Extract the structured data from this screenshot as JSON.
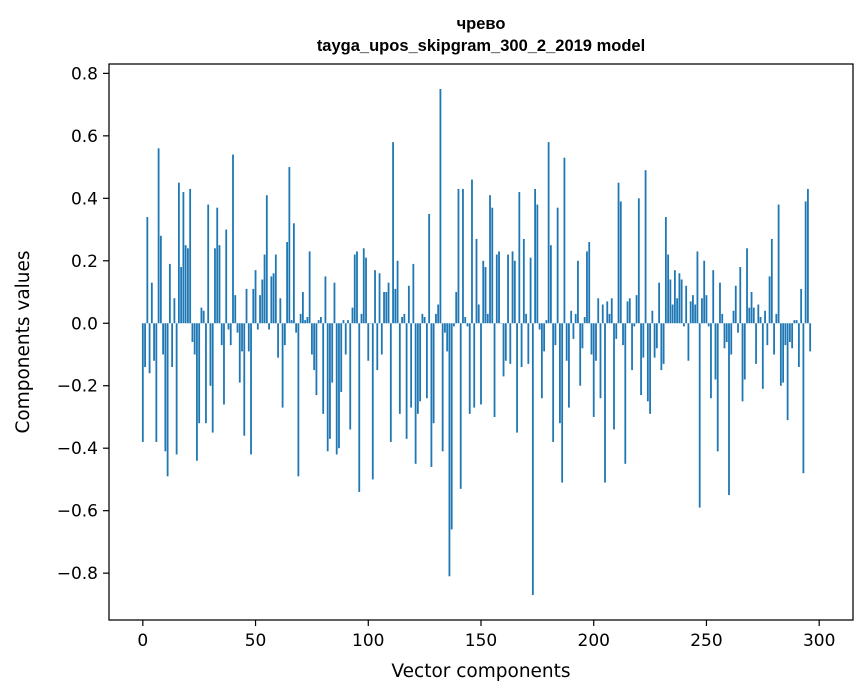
{
  "chart_data": {
    "type": "bar",
    "title": "чрево",
    "subtitle": "tayga_upos_skipgram_300_2_2019 model",
    "xlabel": "Vector components",
    "ylabel": "Components values",
    "xlim": [
      -15,
      315
    ],
    "ylim": [
      -0.95,
      0.83
    ],
    "xticks": [
      0,
      50,
      100,
      150,
      200,
      250,
      300
    ],
    "xtick_labels": [
      "0",
      "50",
      "100",
      "150",
      "200",
      "250",
      "300"
    ],
    "yticks": [
      0.8,
      0.6,
      0.4,
      0.2,
      0.0,
      -0.2,
      -0.4,
      -0.6,
      -0.8
    ],
    "ytick_labels": [
      "0.8",
      "0.6",
      "0.4",
      "0.2",
      "0.0",
      "−0.2",
      "−0.4",
      "−0.6",
      "−0.8"
    ],
    "bar_color": "#1f77b4",
    "grid": false,
    "series": [
      {
        "name": "чрево",
        "x_start": 0,
        "values": [
          -0.38,
          -0.14,
          0.34,
          -0.16,
          0.13,
          -0.12,
          -0.38,
          0.56,
          0.28,
          -0.1,
          -0.41,
          -0.49,
          0.19,
          -0.14,
          0.08,
          -0.42,
          0.45,
          0.18,
          0.42,
          0.25,
          0.24,
          0.43,
          -0.06,
          -0.1,
          -0.44,
          -0.32,
          0.05,
          0.04,
          -0.32,
          0.38,
          -0.2,
          -0.35,
          0.24,
          0.37,
          0.25,
          -0.07,
          -0.26,
          0.3,
          -0.02,
          -0.07,
          0.54,
          0.09,
          -0.03,
          -0.19,
          -0.09,
          -0.36,
          0.11,
          -0.09,
          -0.42,
          0.11,
          0.17,
          -0.02,
          0.09,
          0.14,
          0.22,
          0.41,
          -0.02,
          0.15,
          0.16,
          0.22,
          -0.11,
          0.08,
          -0.27,
          -0.07,
          0.26,
          0.5,
          0.01,
          0.32,
          -0.03,
          -0.49,
          0.03,
          0.1,
          0.01,
          0.02,
          0.23,
          -0.1,
          -0.15,
          -0.23,
          0.01,
          0.02,
          -0.29,
          0.15,
          -0.41,
          -0.37,
          -0.19,
          0.13,
          -0.42,
          -0.4,
          -0.22,
          0.01,
          -0.1,
          0.01,
          -0.34,
          0.05,
          0.22,
          0.23,
          -0.54,
          0.03,
          0.24,
          0.21,
          -0.12,
          0.0,
          -0.5,
          0.17,
          -0.15,
          0.16,
          -0.1,
          0.1,
          0.1,
          0.13,
          -0.38,
          0.58,
          0.11,
          0.2,
          -0.29,
          0.02,
          0.03,
          -0.37,
          0.12,
          -0.27,
          0.19,
          -0.45,
          -0.29,
          -0.25,
          0.03,
          0.02,
          -0.24,
          0.35,
          -0.46,
          -0.32,
          0.03,
          0.06,
          0.75,
          -0.41,
          -0.03,
          -0.09,
          -0.81,
          -0.66,
          -0.01,
          0.1,
          0.43,
          -0.53,
          0.43,
          0.02,
          -0.01,
          -0.29,
          0.46,
          -0.27,
          0.27,
          0.06,
          -0.26,
          0.2,
          0.18,
          0.03,
          0.41,
          0.37,
          -0.3,
          0.22,
          0.23,
          0.0,
          -0.17,
          -0.12,
          0.22,
          -0.13,
          0.23,
          0.2,
          -0.35,
          0.42,
          -0.14,
          0.27,
          0.03,
          -0.13,
          0.21,
          -0.87,
          0.43,
          0.38,
          -0.02,
          -0.24,
          -0.09,
          0.01,
          0.58,
          0.25,
          -0.38,
          -0.07,
          0.37,
          -0.32,
          -0.51,
          0.53,
          -0.12,
          -0.27,
          0.04,
          -0.05,
          0.03,
          0.2,
          -0.2,
          -0.08,
          0.02,
          0.23,
          0.26,
          -0.1,
          -0.3,
          -0.12,
          0.08,
          -0.24,
          0.06,
          -0.51,
          0.07,
          0.03,
          0.08,
          -0.34,
          -0.05,
          0.45,
          0.39,
          -0.07,
          -0.45,
          0.07,
          0.08,
          -0.15,
          -0.01,
          0.09,
          0.4,
          -0.23,
          -0.11,
          0.49,
          -0.25,
          -0.29,
          0.04,
          -0.11,
          -0.08,
          0.13,
          -0.15,
          -0.13,
          0.34,
          0.22,
          0.14,
          0.06,
          0.17,
          0.08,
          0.16,
          0.14,
          -0.01,
          0.12,
          -0.12,
          0.07,
          0.09,
          0.06,
          0.23,
          -0.59,
          0.08,
          0.2,
          0.09,
          -0.01,
          -0.24,
          0.17,
          -0.18,
          -0.41,
          0.13,
          0.03,
          -0.08,
          -0.06,
          -0.55,
          -0.1,
          0.04,
          0.12,
          -0.03,
          0.18,
          -0.25,
          -0.18,
          0.24,
          0.05,
          0.1,
          0.05,
          -0.13,
          0.06,
          0.02,
          -0.21,
          0.04,
          -0.07,
          0.15,
          0.27,
          -0.1,
          0.03,
          0.38,
          -0.2,
          -0.19,
          -0.07,
          -0.31,
          -0.06,
          -0.08,
          0.01,
          0.01,
          -0.14,
          0.11,
          -0.48,
          0.39,
          0.43,
          -0.09
        ]
      }
    ]
  }
}
